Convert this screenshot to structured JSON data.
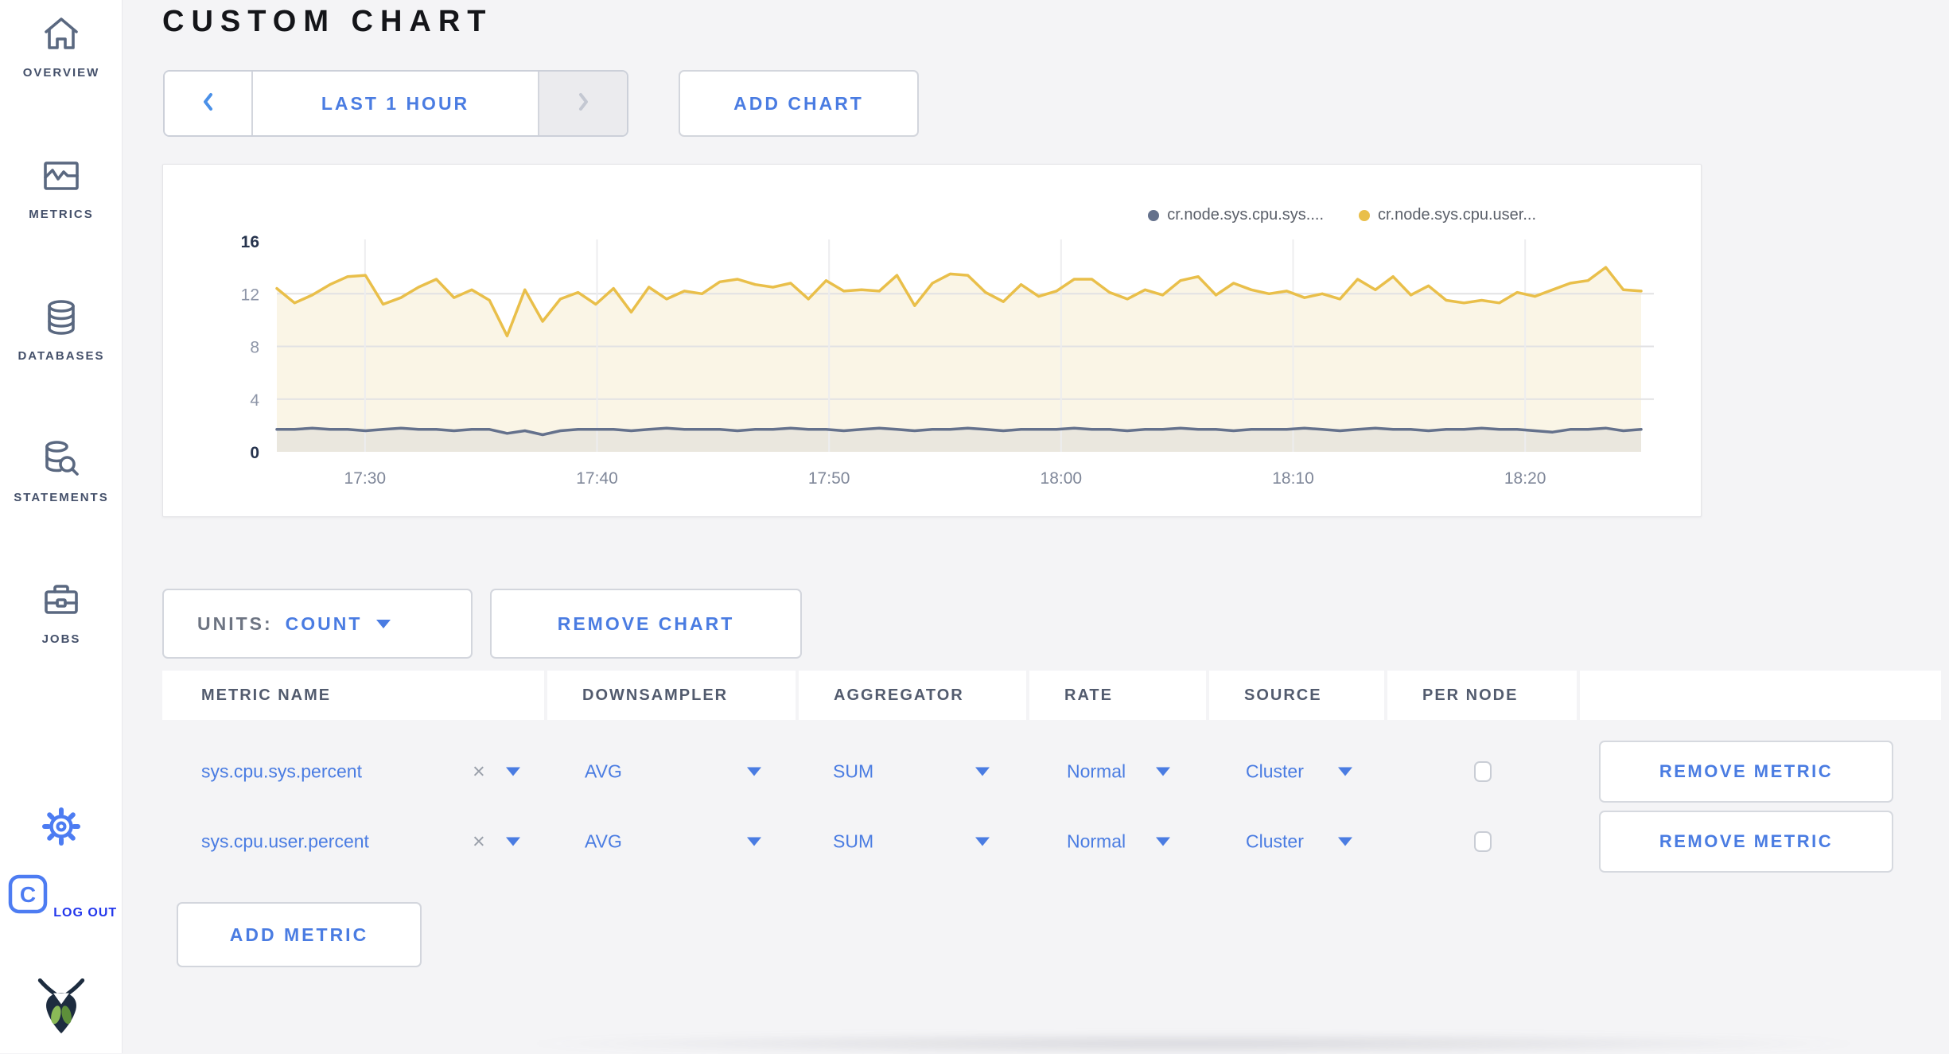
{
  "app": {
    "background": "#f4f4f6",
    "accent_blue": "#4a7ce2",
    "sidebar_slate": "#5a6880"
  },
  "sidebar": {
    "items": [
      {
        "label": "OVERVIEW",
        "icon": "home-icon"
      },
      {
        "label": "METRICS",
        "icon": "metrics-icon"
      },
      {
        "label": "DATABASES",
        "icon": "database-icon"
      },
      {
        "label": "STATEMENTS",
        "icon": "statements-icon"
      },
      {
        "label": "JOBS",
        "icon": "jobs-icon"
      }
    ],
    "logout_label": "LOG OUT"
  },
  "header": {
    "title": "CUSTOM CHART"
  },
  "toolbar": {
    "time_range": "LAST 1 HOUR",
    "add_chart": "ADD CHART"
  },
  "chart_controls": {
    "units_label": "UNITS:",
    "units_value": "COUNT",
    "remove_chart": "REMOVE CHART"
  },
  "chart_data": {
    "type": "line",
    "title": "",
    "xlabel": "",
    "ylabel": "",
    "ylim": [
      0,
      16
    ],
    "y_ticks": [
      0,
      4,
      8,
      12,
      16
    ],
    "y_gridlines": [
      4,
      8,
      12
    ],
    "x_ticks": [
      {
        "label": "17:30",
        "minute": 1050
      },
      {
        "label": "17:40",
        "minute": 1060
      },
      {
        "label": "17:50",
        "minute": 1070
      },
      {
        "label": "18:00",
        "minute": 1080
      },
      {
        "label": "18:10",
        "minute": 1090
      },
      {
        "label": "18:20",
        "minute": 1100
      }
    ],
    "x_window_minutes": [
      1046.2,
      1105.0
    ],
    "grid": true,
    "legend_position": "top-right",
    "series": [
      {
        "name": "cr.node.sys.cpu.sys....",
        "color": "#64718c",
        "fill": "#eae7de",
        "values": [
          1.7,
          1.7,
          1.8,
          1.7,
          1.7,
          1.6,
          1.7,
          1.8,
          1.7,
          1.7,
          1.6,
          1.7,
          1.7,
          1.4,
          1.6,
          1.3,
          1.6,
          1.7,
          1.7,
          1.7,
          1.6,
          1.7,
          1.8,
          1.7,
          1.7,
          1.7,
          1.6,
          1.7,
          1.7,
          1.8,
          1.7,
          1.7,
          1.6,
          1.7,
          1.8,
          1.7,
          1.6,
          1.7,
          1.7,
          1.8,
          1.7,
          1.6,
          1.7,
          1.7,
          1.7,
          1.8,
          1.7,
          1.7,
          1.6,
          1.7,
          1.7,
          1.8,
          1.7,
          1.7,
          1.6,
          1.7,
          1.7,
          1.7,
          1.8,
          1.7,
          1.6,
          1.7,
          1.8,
          1.7,
          1.7,
          1.6,
          1.7,
          1.7,
          1.8,
          1.7,
          1.7,
          1.6,
          1.5,
          1.7,
          1.7,
          1.8,
          1.6,
          1.7
        ]
      },
      {
        "name": "cr.node.sys.cpu.user...",
        "color": "#e9bf4a",
        "fill": "#faf5e6",
        "values": [
          12.4,
          11.3,
          11.9,
          12.7,
          13.3,
          13.4,
          11.2,
          11.7,
          12.5,
          13.1,
          11.7,
          12.3,
          11.5,
          8.8,
          12.3,
          9.9,
          11.6,
          12.1,
          11.2,
          12.4,
          10.6,
          12.5,
          11.6,
          12.2,
          12.0,
          12.9,
          13.1,
          12.7,
          12.5,
          12.8,
          11.6,
          13.0,
          12.2,
          12.3,
          12.2,
          13.4,
          11.1,
          12.8,
          13.5,
          13.4,
          12.1,
          11.4,
          12.7,
          11.8,
          12.2,
          13.1,
          13.1,
          12.1,
          11.6,
          12.3,
          11.9,
          13.0,
          13.3,
          11.9,
          12.8,
          12.3,
          12.0,
          12.2,
          11.7,
          12.0,
          11.6,
          13.1,
          12.3,
          13.3,
          11.9,
          12.6,
          11.5,
          11.3,
          11.5,
          11.3,
          12.1,
          11.8,
          12.3,
          12.8,
          13.0,
          14.0,
          12.3,
          12.2
        ]
      }
    ]
  },
  "metrics_table": {
    "columns": [
      "METRIC NAME",
      "DOWNSAMPLER",
      "AGGREGATOR",
      "RATE",
      "SOURCE",
      "PER NODE",
      ""
    ],
    "clear_glyph": "×",
    "rows": [
      {
        "metric_name": "sys.cpu.sys.percent",
        "downsampler": "AVG",
        "aggregator": "SUM",
        "rate": "Normal",
        "source": "Cluster",
        "per_node_checked": false,
        "action": "REMOVE METRIC"
      },
      {
        "metric_name": "sys.cpu.user.percent",
        "downsampler": "AVG",
        "aggregator": "SUM",
        "rate": "Normal",
        "source": "Cluster",
        "per_node_checked": false,
        "action": "REMOVE METRIC"
      }
    ],
    "add_metric": "ADD METRIC"
  }
}
